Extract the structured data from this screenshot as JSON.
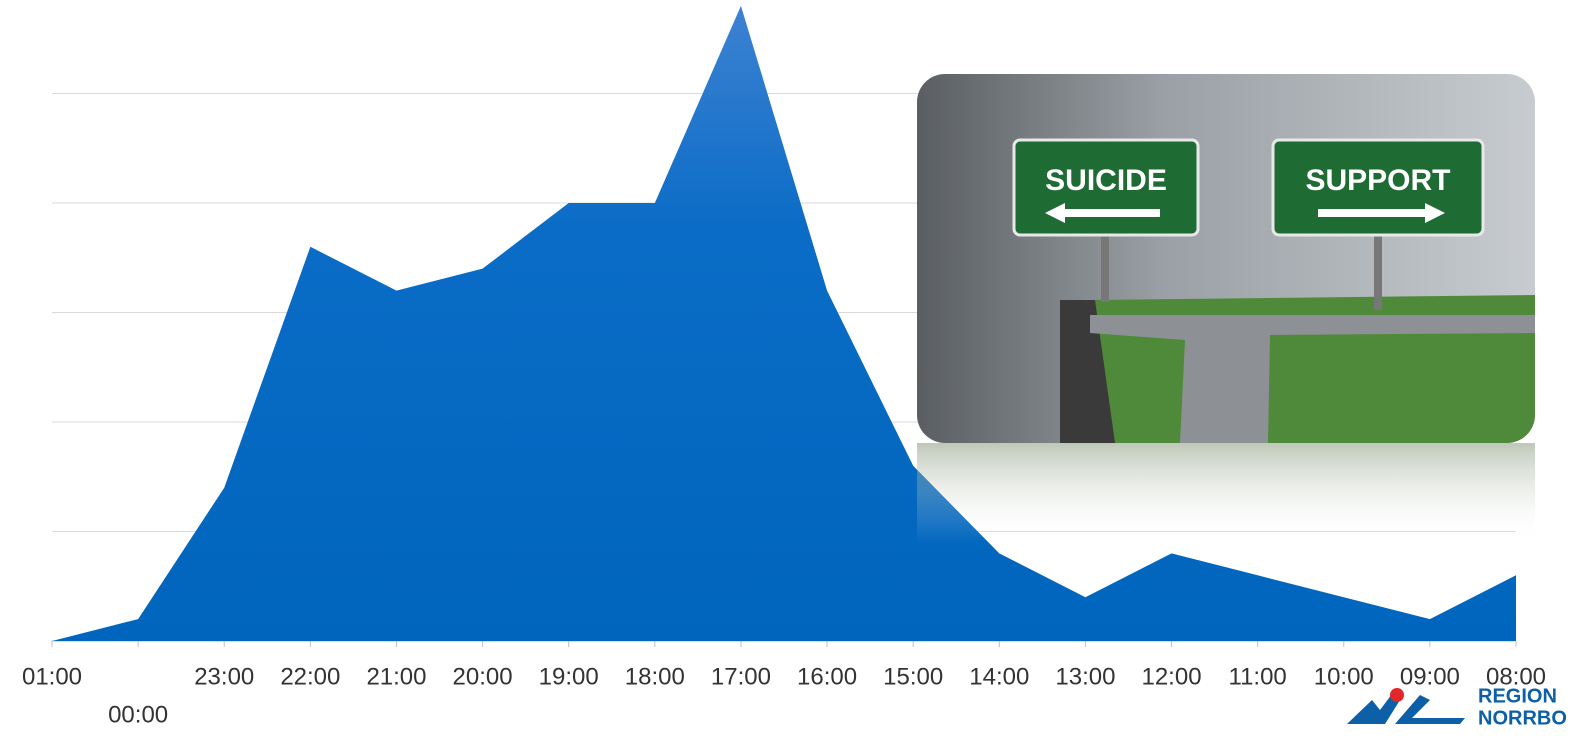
{
  "chart_data": {
    "type": "area",
    "categories": [
      "01:00",
      "00:00",
      "23:00",
      "22:00",
      "21:00",
      "20:00",
      "19:00",
      "18:00",
      "17:00",
      "16:00",
      "15:00",
      "14:00",
      "13:00",
      "12:00",
      "11:00",
      "10:00",
      "09:00",
      "08:00"
    ],
    "values": [
      0,
      0.2,
      1.4,
      3.6,
      3.2,
      3.4,
      4.0,
      4.0,
      5.8,
      3.2,
      1.6,
      0.8,
      0.4,
      0.8,
      0.6,
      0.4,
      0.2,
      0.6
    ],
    "color": "#0066c0",
    "ylim": [
      0,
      5.85
    ],
    "yticks": [
      0,
      1,
      2,
      3,
      4,
      5
    ],
    "grid": true
  },
  "image": {
    "signs": [
      "SUICIDE",
      "SUPPORT"
    ]
  },
  "logo": {
    "lines": [
      "REGION",
      "NORRBO"
    ]
  }
}
